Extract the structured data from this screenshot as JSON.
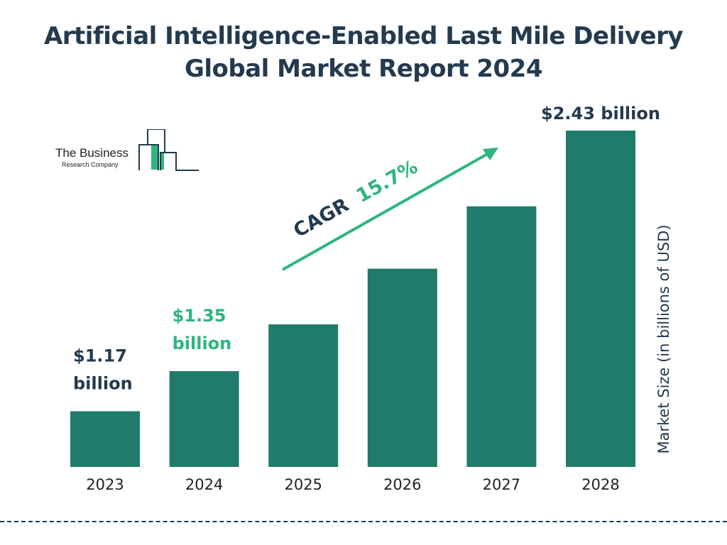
{
  "title": "Artificial Intelligence-Enabled Last Mile Delivery Global Market Report 2024",
  "logo": {
    "line1": "The Business",
    "line2": "Research Company"
  },
  "colors": {
    "bar": "#217b6c",
    "title": "#233a4f",
    "accent": "#2cb67d"
  },
  "chart_data": {
    "type": "bar",
    "title": "Artificial Intelligence-Enabled Last Mile Delivery Global Market Report 2024",
    "categories": [
      "2023",
      "2024",
      "2025",
      "2026",
      "2027",
      "2028"
    ],
    "values": [
      1.17,
      1.35,
      1.56,
      1.81,
      2.09,
      2.43
    ],
    "ylabel": "Market Size (in billions of USD)",
    "xlabel": "",
    "data_labels": [
      {
        "category": "2023",
        "line1": "$1.17",
        "line2": "billion"
      },
      {
        "category": "2024",
        "line1": "$1.35",
        "line2": "billion"
      },
      {
        "category": "2028",
        "line1": "$2.43 billion",
        "line2": ""
      }
    ],
    "annotation": {
      "prefix": "CAGR",
      "value": "15.7%"
    },
    "grid": false
  }
}
